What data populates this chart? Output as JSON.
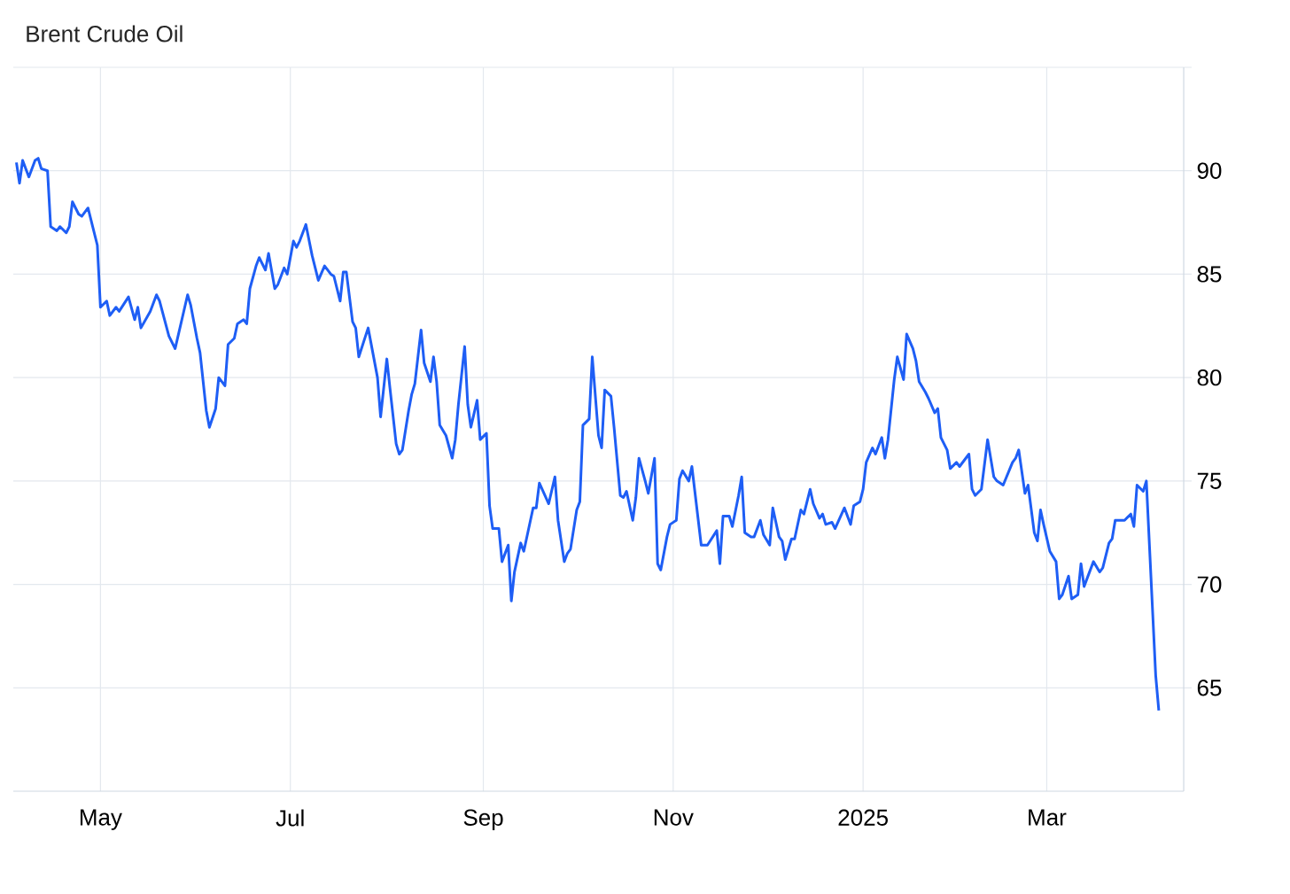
{
  "chart_data": {
    "type": "line",
    "title": "Brent Crude Oil",
    "color": "#1e5ef5",
    "grid": true,
    "x": [
      "2024-04-04",
      "2024-04-05",
      "2024-04-06",
      "2024-04-08",
      "2024-04-10",
      "2024-04-11",
      "2024-04-12",
      "2024-04-14",
      "2024-04-15",
      "2024-04-17",
      "2024-04-18",
      "2024-04-20",
      "2024-04-21",
      "2024-04-22",
      "2024-04-24",
      "2024-04-25",
      "2024-04-27",
      "2024-04-30",
      "2024-05-01",
      "2024-05-03",
      "2024-05-04",
      "2024-05-06",
      "2024-05-07",
      "2024-05-10",
      "2024-05-12",
      "2024-05-13",
      "2024-05-14",
      "2024-05-17",
      "2024-05-19",
      "2024-05-20",
      "2024-05-23",
      "2024-05-25",
      "2024-05-29",
      "2024-05-30",
      "2024-06-01",
      "2024-06-02",
      "2024-06-04",
      "2024-06-05",
      "2024-06-07",
      "2024-06-08",
      "2024-06-10",
      "2024-06-11",
      "2024-06-13",
      "2024-06-14",
      "2024-06-16",
      "2024-06-17",
      "2024-06-18",
      "2024-06-20",
      "2024-06-21",
      "2024-06-23",
      "2024-06-24",
      "2024-06-26",
      "2024-06-27",
      "2024-06-29",
      "2024-06-30",
      "2024-07-02",
      "2024-07-03",
      "2024-07-04",
      "2024-07-06",
      "2024-07-08",
      "2024-07-10",
      "2024-07-12",
      "2024-07-14",
      "2024-07-15",
      "2024-07-17",
      "2024-07-18",
      "2024-07-19",
      "2024-07-21",
      "2024-07-22",
      "2024-07-23",
      "2024-07-26",
      "2024-07-29",
      "2024-07-30",
      "2024-08-01",
      "2024-08-02",
      "2024-08-04",
      "2024-08-05",
      "2024-08-06",
      "2024-08-08",
      "2024-08-09",
      "2024-08-10",
      "2024-08-12",
      "2024-08-13",
      "2024-08-15",
      "2024-08-16",
      "2024-08-17",
      "2024-08-18",
      "2024-08-20",
      "2024-08-22",
      "2024-08-23",
      "2024-08-24",
      "2024-08-26",
      "2024-08-27",
      "2024-08-28",
      "2024-08-30",
      "2024-08-31",
      "2024-09-02",
      "2024-09-03",
      "2024-09-04",
      "2024-09-06",
      "2024-09-07",
      "2024-09-09",
      "2024-09-10",
      "2024-09-11",
      "2024-09-13",
      "2024-09-14",
      "2024-09-17",
      "2024-09-18",
      "2024-09-19",
      "2024-09-22",
      "2024-09-24",
      "2024-09-25",
      "2024-09-27",
      "2024-09-28",
      "2024-09-29",
      "2024-10-01",
      "2024-10-02",
      "2024-10-03",
      "2024-10-05",
      "2024-10-06",
      "2024-10-08",
      "2024-10-09",
      "2024-10-10",
      "2024-10-12",
      "2024-10-13",
      "2024-10-15",
      "2024-10-16",
      "2024-10-17",
      "2024-10-19",
      "2024-10-20",
      "2024-10-21",
      "2024-10-23",
      "2024-10-24",
      "2024-10-26",
      "2024-10-27",
      "2024-10-28",
      "2024-10-30",
      "2024-10-31",
      "2024-11-02",
      "2024-11-03",
      "2024-11-04",
      "2024-11-06",
      "2024-11-07",
      "2024-11-10",
      "2024-11-12",
      "2024-11-15",
      "2024-11-16",
      "2024-11-17",
      "2024-11-19",
      "2024-11-20",
      "2024-11-22",
      "2024-11-23",
      "2024-11-24",
      "2024-11-26",
      "2024-11-27",
      "2024-11-29",
      "2024-11-30",
      "2024-12-02",
      "2024-12-03",
      "2024-12-05",
      "2024-12-06",
      "2024-12-07",
      "2024-12-09",
      "2024-12-10",
      "2024-12-12",
      "2024-12-13",
      "2024-12-15",
      "2024-12-16",
      "2024-12-18",
      "2024-12-19",
      "2024-12-20",
      "2024-12-22",
      "2024-12-23",
      "2024-12-26",
      "2024-12-28",
      "2024-12-29",
      "2024-12-31",
      "2025-01-01",
      "2025-01-02",
      "2025-01-04",
      "2025-01-05",
      "2025-01-07",
      "2025-01-08",
      "2025-01-09",
      "2025-01-11",
      "2025-01-12",
      "2025-01-14",
      "2025-01-15",
      "2025-01-17",
      "2025-01-18",
      "2025-01-19",
      "2025-01-21",
      "2025-01-22",
      "2025-01-24",
      "2025-01-25",
      "2025-01-26",
      "2025-01-28",
      "2025-01-29",
      "2025-01-31",
      "2025-02-01",
      "2025-02-04",
      "2025-02-05",
      "2025-02-06",
      "2025-02-08",
      "2025-02-10",
      "2025-02-12",
      "2025-02-13",
      "2025-02-15",
      "2025-02-18",
      "2025-02-19",
      "2025-02-20",
      "2025-02-22",
      "2025-02-23",
      "2025-02-25",
      "2025-02-26",
      "2025-02-27",
      "2025-02-28",
      "2025-03-02",
      "2025-03-04",
      "2025-03-05",
      "2025-03-06",
      "2025-03-08",
      "2025-03-09",
      "2025-03-11",
      "2025-03-12",
      "2025-03-13",
      "2025-03-16",
      "2025-03-18",
      "2025-03-19",
      "2025-03-21",
      "2025-03-22",
      "2025-03-23",
      "2025-03-26",
      "2025-03-28",
      "2025-03-29",
      "2025-03-30",
      "2025-04-01",
      "2025-04-02",
      "2025-04-05",
      "2025-04-06"
    ],
    "values": [
      90.4,
      89.4,
      90.5,
      89.7,
      90.5,
      90.6,
      90.1,
      90.0,
      87.3,
      87.1,
      87.3,
      87.0,
      87.3,
      88.5,
      87.9,
      87.8,
      88.2,
      86.4,
      83.4,
      83.7,
      83.0,
      83.4,
      83.2,
      83.9,
      82.8,
      83.4,
      82.4,
      83.2,
      84.0,
      83.7,
      82.0,
      81.4,
      84.0,
      83.5,
      81.9,
      81.2,
      78.4,
      77.6,
      78.5,
      80.0,
      79.6,
      81.6,
      81.9,
      82.6,
      82.8,
      82.6,
      84.3,
      85.4,
      85.8,
      85.2,
      86.0,
      84.3,
      84.5,
      85.3,
      85.0,
      86.6,
      86.3,
      86.6,
      87.4,
      85.9,
      84.7,
      85.4,
      85.0,
      84.9,
      83.7,
      85.1,
      85.1,
      82.7,
      82.4,
      81.0,
      82.4,
      80.0,
      78.1,
      80.9,
      79.5,
      76.8,
      76.3,
      76.5,
      78.4,
      79.2,
      79.7,
      82.3,
      80.7,
      79.8,
      81.0,
      79.8,
      77.7,
      77.2,
      76.1,
      77.0,
      78.7,
      81.5,
      78.7,
      77.6,
      78.9,
      77.0,
      77.3,
      73.8,
      72.7,
      72.7,
      71.1,
      71.9,
      69.2,
      70.6,
      72.0,
      71.6,
      73.7,
      73.7,
      74.9,
      73.9,
      75.2,
      73.1,
      71.1,
      71.5,
      71.7,
      73.6,
      74.0,
      77.7,
      78.0,
      81.0,
      77.2,
      76.6,
      79.4,
      79.1,
      77.6,
      74.3,
      74.2,
      74.5,
      73.1,
      74.2,
      76.1,
      75.0,
      74.4,
      76.1,
      71.0,
      70.7,
      72.3,
      72.9,
      73.1,
      75.1,
      75.5,
      75.0,
      75.7,
      71.9,
      71.9,
      72.6,
      71.0,
      73.3,
      73.3,
      72.8,
      74.3,
      75.2,
      72.5,
      72.3,
      72.3,
      73.1,
      72.4,
      71.9,
      73.7,
      72.3,
      72.1,
      71.2,
      72.2,
      72.2,
      73.6,
      73.4,
      74.6,
      73.9,
      73.2,
      73.4,
      72.9,
      73.0,
      72.7,
      73.7,
      72.9,
      73.8,
      74.0,
      74.6,
      75.9,
      76.6,
      76.3,
      77.1,
      76.1,
      77.0,
      79.9,
      81.0,
      79.9,
      82.1,
      81.4,
      80.8,
      79.8,
      79.3,
      79.0,
      78.3,
      78.5,
      77.1,
      76.5,
      75.6,
      75.9,
      75.7,
      76.3,
      74.6,
      74.3,
      74.6,
      77.0,
      75.2,
      75.0,
      74.8,
      75.9,
      76.1,
      76.5,
      74.4,
      74.8,
      72.5,
      72.1,
      73.6,
      72.9,
      71.6,
      71.1,
      69.3,
      69.5,
      70.4,
      69.3,
      69.5,
      71.0,
      69.9,
      71.1,
      70.6,
      70.8,
      72.0,
      72.2,
      73.1,
      73.1,
      73.4,
      72.8,
      74.8,
      74.5,
      75.0,
      65.6,
      63.9
    ],
    "xlim": [
      "2024-04-03",
      "2025-04-14"
    ],
    "xticks": [
      {
        "value": "2024-05-01",
        "label": "May"
      },
      {
        "value": "2024-07-01",
        "label": "Jul"
      },
      {
        "value": "2024-09-01",
        "label": "Sep"
      },
      {
        "value": "2024-11-01",
        "label": "Nov"
      },
      {
        "value": "2025-01-01",
        "label": "2025"
      },
      {
        "value": "2025-03-01",
        "label": "Mar"
      }
    ],
    "ylim": [
      60,
      95
    ],
    "yticks": [
      65,
      70,
      75,
      80,
      85,
      90,
      {
        "value": 95,
        "label": null
      }
    ]
  }
}
